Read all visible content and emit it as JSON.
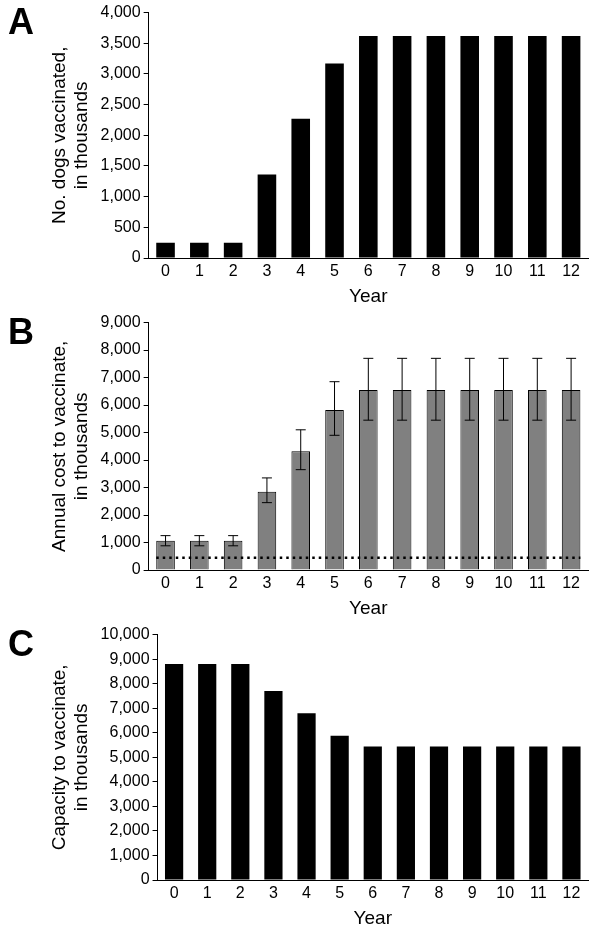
{
  "chart_data": [
    {
      "type": "bar",
      "title": "A",
      "categories": [
        "0",
        "1",
        "2",
        "3",
        "4",
        "5",
        "6",
        "7",
        "8",
        "9",
        "10",
        "11",
        "12"
      ],
      "values": [
        250,
        250,
        250,
        1360,
        2270,
        3170,
        3620,
        3620,
        3620,
        3620,
        3620,
        3620,
        3620
      ],
      "color": "#000000",
      "x_label": "Year",
      "y_label": "No. dogs vaccinated, in thousands",
      "ylim": [
        0,
        4000
      ],
      "yticks": [
        0,
        500,
        {
          "value": 1000,
          "label": "1,000"
        },
        {
          "value": 1500,
          "label": "1,500"
        },
        {
          "value": 2000,
          "label": "2,000"
        },
        {
          "value": 2500,
          "label": "2,500"
        },
        {
          "value": 3000,
          "label": "3,000"
        },
        {
          "value": 3500,
          "label": "3,500"
        },
        {
          "value": 4000,
          "label": "4,000"
        }
      ],
      "grid": false
    },
    {
      "type": "bar",
      "title": "B",
      "categories": [
        "0",
        "1",
        "2",
        "3",
        "4",
        "5",
        "6",
        "7",
        "8",
        "9",
        "10",
        "11",
        "12"
      ],
      "values": [
        1060,
        1060,
        1060,
        2850,
        4320,
        5820,
        6550,
        6550,
        6550,
        6550,
        6550,
        6550,
        6550
      ],
      "error_low": [
        880,
        880,
        880,
        2450,
        3650,
        4900,
        5450,
        5450,
        5450,
        5450,
        5450,
        5450,
        5450
      ],
      "error_high": [
        1250,
        1250,
        1250,
        3350,
        5100,
        6850,
        7700,
        7700,
        7700,
        7700,
        7700,
        7700,
        7700
      ],
      "reference_line": {
        "y": 450,
        "line_style": "dotted"
      },
      "color": "#808080",
      "x_label": "Year",
      "y_label": "Annual cost to vaccinate, in thousands",
      "ylim": [
        0,
        9000
      ],
      "yticks": [
        0,
        {
          "value": 1000,
          "label": "1,000"
        },
        {
          "value": 2000,
          "label": "2,000"
        },
        {
          "value": 3000,
          "label": "3,000"
        },
        {
          "value": 4000,
          "label": "4,000"
        },
        {
          "value": 5000,
          "label": "5,000"
        },
        {
          "value": 6000,
          "label": "6,000"
        },
        {
          "value": 7000,
          "label": "7,000"
        },
        {
          "value": 8000,
          "label": "8,000"
        },
        {
          "value": 9000,
          "label": "9,000"
        }
      ],
      "grid": false
    },
    {
      "type": "bar",
      "title": "C",
      "categories": [
        "0",
        "1",
        "2",
        "3",
        "4",
        "5",
        "6",
        "7",
        "8",
        "9",
        "10",
        "11",
        "12"
      ],
      "values": [
        8800,
        8800,
        8800,
        7700,
        6800,
        5880,
        5440,
        5440,
        5440,
        5440,
        5440,
        5440,
        5440
      ],
      "color": "#000000",
      "x_label": "Year",
      "y_label": "Capacity to vaccinate, in thousands",
      "ylim": [
        0,
        10000
      ],
      "yticks": [
        0,
        {
          "value": 1000,
          "label": "1,000"
        },
        {
          "value": 2000,
          "label": "2,000"
        },
        {
          "value": 3000,
          "label": "3,000"
        },
        {
          "value": 4000,
          "label": "4,000"
        },
        {
          "value": 5000,
          "label": "5,000"
        },
        {
          "value": 6000,
          "label": "6,000"
        },
        {
          "value": 7000,
          "label": "7,000"
        },
        {
          "value": 8000,
          "label": "8,000"
        },
        {
          "value": 9000,
          "label": "9,000"
        },
        {
          "value": 10000,
          "label": "10,000"
        }
      ],
      "grid": false
    }
  ]
}
